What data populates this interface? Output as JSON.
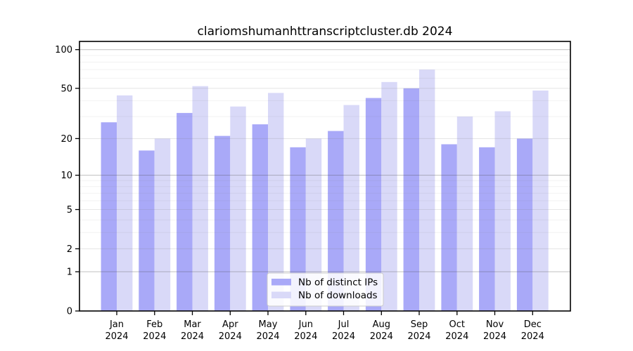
{
  "chart_data": {
    "type": "bar",
    "title": "clariomshumanhttranscriptcluster.db 2024",
    "categories": [
      "Jan",
      "Feb",
      "Mar",
      "Apr",
      "May",
      "Jun",
      "Jul",
      "Aug",
      "Sep",
      "Oct",
      "Nov",
      "Dec"
    ],
    "category_year": "2024",
    "series": [
      {
        "name": "Nb of distinct IPs",
        "color": "#a9a9f8",
        "values": [
          27,
          16,
          32,
          21,
          26,
          17,
          23,
          42,
          50,
          18,
          17,
          20
        ]
      },
      {
        "name": "Nb of downloads",
        "color": "#d9d9f8",
        "values": [
          44,
          20,
          52,
          36,
          46,
          20,
          37,
          56,
          70,
          30,
          33,
          48
        ]
      }
    ],
    "yscale": "log1p",
    "yticks": [
      0,
      1,
      2,
      5,
      10,
      20,
      50,
      100
    ],
    "minor_gridlines": [
      3,
      4,
      6,
      7,
      8,
      9,
      30,
      40,
      60,
      70,
      80,
      90
    ],
    "decade_gridlines": [
      1,
      10,
      100
    ],
    "ylim": [
      0,
      116
    ],
    "grid": true,
    "legend_position": "bottom-center",
    "colors": {
      "frame": "#000000",
      "grid_decade": "rgba(80,80,80,0.32)",
      "grid_tick": "rgba(120,120,120,0.18)",
      "grid_minor": "rgba(130,130,130,0.10)",
      "legend_border": "#cccccc",
      "legend_bg": "rgba(255,255,255,0.85)"
    }
  }
}
